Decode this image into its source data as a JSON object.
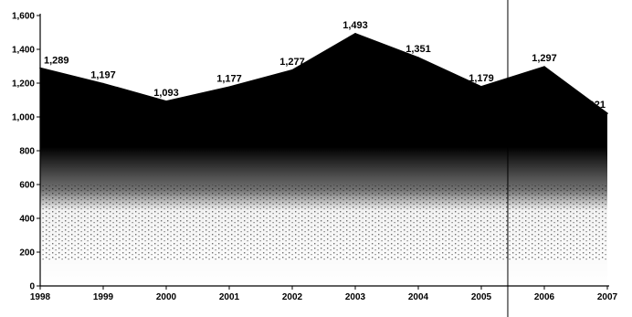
{
  "chart_data": {
    "type": "area",
    "x": [
      "1998",
      "1999",
      "2000",
      "2001",
      "2002",
      "2003",
      "2004",
      "2005",
      "2006",
      "2007"
    ],
    "series": [
      {
        "values": [
          1289,
          1197,
          1093,
          1177,
          1277,
          1493,
          1351,
          1179,
          1297,
          1021
        ]
      }
    ],
    "data_labels": [
      "1,289",
      "1,197",
      "1,093",
      "1,177",
      "1,277",
      "1,493",
      "1,351",
      "1,179",
      "1,297",
      "1,021"
    ],
    "y_ticks": [
      "0",
      "200",
      "400",
      "600",
      "800",
      "1,000",
      "1,200",
      "1,400",
      "1,600"
    ],
    "y_tick_values": [
      0,
      200,
      400,
      600,
      800,
      1000,
      1200,
      1400,
      1600
    ],
    "ylim": [
      0,
      1600
    ],
    "title": "",
    "xlabel": "",
    "ylabel": "",
    "grid": false,
    "legend": "none",
    "fill_color": "#000000",
    "vertical_marker_between": [
      "2005",
      "2006"
    ]
  }
}
